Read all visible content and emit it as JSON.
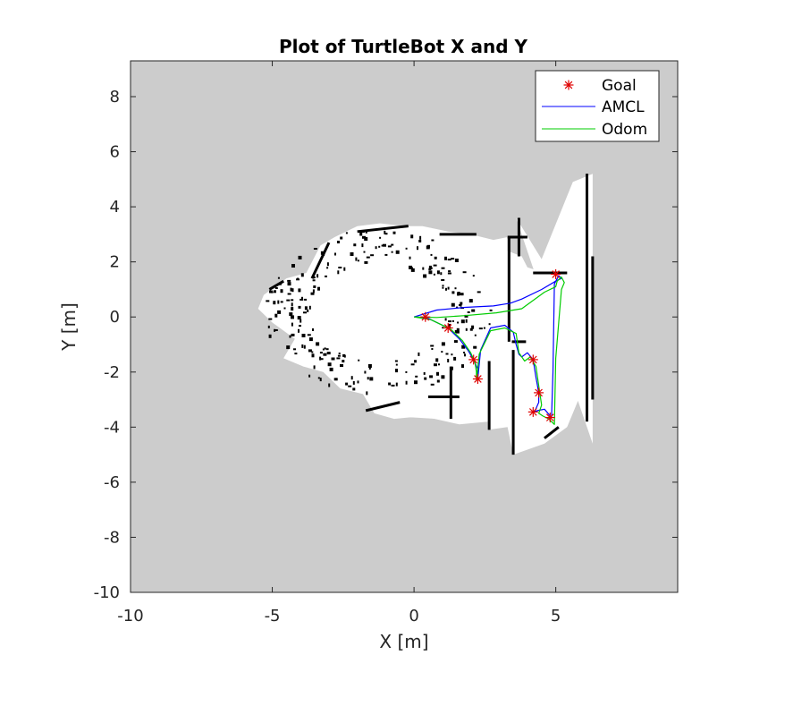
{
  "chart_data": {
    "type": "line",
    "title": "Plot of TurtleBot X and Y",
    "xlabel": "X [m]",
    "ylabel": "Y [m]",
    "xlim": [
      -10,
      9.3
    ],
    "ylim": [
      -10,
      9.3
    ],
    "xticks": [
      "-10",
      "-5",
      "0",
      "5"
    ],
    "yticks": [
      "8",
      "6",
      "4",
      "2",
      "0",
      "-2",
      "-4",
      "-6",
      "-8",
      "-10"
    ],
    "background_image": "occupancy-grid-map",
    "legend_position": "top-right",
    "colors": {
      "map_background": "#cccccc",
      "free_space": "#ffffff",
      "obstacle": "#000000",
      "goal": "#e00000",
      "amcl": "#0000ff",
      "odom": "#00cc00"
    },
    "series": [
      {
        "name": "Goal",
        "style": "star-markers",
        "x": [
          0.4,
          1.2,
          2.1,
          2.25,
          4.2,
          4.2,
          4.4,
          4.8,
          5.0
        ],
        "y": [
          0.0,
          -0.4,
          -1.55,
          -2.25,
          -1.55,
          -3.45,
          -2.75,
          -3.65,
          1.55
        ]
      },
      {
        "name": "AMCL",
        "style": "line",
        "x": [
          0.0,
          0.5,
          1.2,
          1.6,
          1.9,
          2.1,
          2.25,
          2.25,
          2.35,
          2.7,
          3.2,
          3.5,
          3.6,
          3.7,
          3.8,
          4.0,
          4.2,
          4.3,
          4.4,
          4.4,
          4.25,
          4.35,
          4.6,
          4.85,
          4.9,
          4.95,
          5.1,
          5.2,
          5.0,
          4.5,
          3.8,
          3.4,
          2.8,
          1.8,
          0.8,
          0.0
        ],
        "y": [
          0.0,
          -0.05,
          -0.4,
          -0.8,
          -1.2,
          -1.55,
          -1.9,
          -2.25,
          -1.2,
          -0.4,
          -0.3,
          -0.55,
          -1.0,
          -1.35,
          -1.45,
          -1.3,
          -1.55,
          -2.2,
          -2.75,
          -3.1,
          -3.45,
          -3.4,
          -3.35,
          -3.65,
          -2.0,
          1.2,
          1.5,
          1.4,
          1.3,
          1.0,
          0.65,
          0.5,
          0.4,
          0.35,
          0.25,
          0.0
        ]
      },
      {
        "name": "Odom",
        "style": "line",
        "x": [
          0.0,
          0.6,
          1.3,
          1.7,
          2.0,
          2.15,
          2.2,
          2.2,
          2.3,
          2.7,
          3.2,
          3.6,
          3.7,
          3.9,
          4.1,
          4.3,
          4.4,
          4.5,
          4.4,
          4.55,
          4.75,
          4.95,
          5.0,
          5.2,
          5.3,
          5.2,
          5.05,
          5.0,
          4.6,
          3.8,
          2.9,
          1.8,
          0.8,
          0.0
        ],
        "y": [
          0.0,
          -0.1,
          -0.45,
          -0.85,
          -1.3,
          -1.65,
          -2.0,
          -2.3,
          -1.35,
          -0.5,
          -0.4,
          -0.6,
          -1.3,
          -1.6,
          -1.45,
          -1.8,
          -2.5,
          -3.2,
          -3.5,
          -3.6,
          -3.7,
          -3.9,
          -1.5,
          1.0,
          1.25,
          1.45,
          1.3,
          1.1,
          0.9,
          0.3,
          0.15,
          0.05,
          -0.02,
          0.0
        ]
      }
    ]
  }
}
